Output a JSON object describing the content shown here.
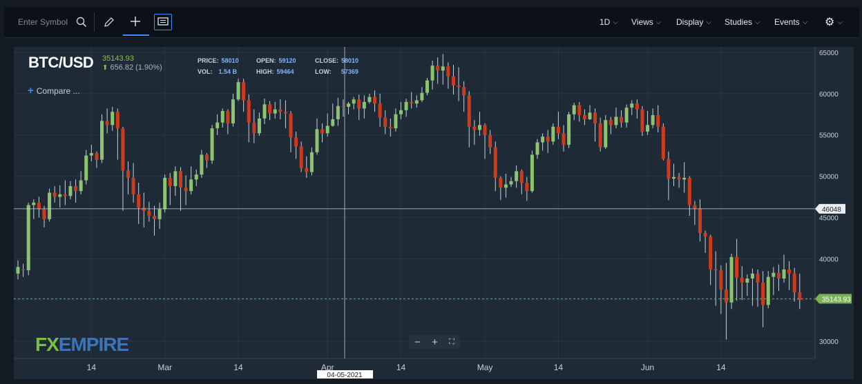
{
  "toolbar": {
    "symbol_placeholder": "Enter Symbol",
    "interval": "1D",
    "views": "Views",
    "display": "Display",
    "studies": "Studies",
    "events": "Events"
  },
  "header": {
    "symbol": "BTC/USD",
    "last": "35143.93",
    "change": "656.82 (1.90%)",
    "compare": "Compare ..."
  },
  "stats": {
    "price_label": "PRICE:",
    "price": "58010",
    "open_label": "OPEN:",
    "open": "59120",
    "close_label": "CLOSE:",
    "close": "58010",
    "vol_label": "VOL:",
    "vol": "1.54 B",
    "high_label": "HIGH:",
    "high": "59464",
    "low_label": "LOW:",
    "low": "57369"
  },
  "crosshair": {
    "date_label": "04-05-2021",
    "price_label": "46048",
    "price": 46048
  },
  "last_price_tag": "35143.93",
  "logo": {
    "fx": "FX",
    "empire": "EMPIRE"
  },
  "colors": {
    "up": "#8cc36e",
    "down": "#cf3a1d",
    "background": "#1e2a36",
    "grid": "#2a3846",
    "last_tag": "#7ab255"
  },
  "chart_data": {
    "type": "candlestick",
    "symbol": "BTC/USD",
    "ylim": [
      28000,
      65000
    ],
    "y_ticks": [
      30000,
      35000,
      40000,
      45000,
      50000,
      55000,
      60000,
      65000
    ],
    "x_ticks": [
      {
        "day": 14,
        "label": "14"
      },
      {
        "day": 28,
        "label": "Mar"
      },
      {
        "day": 42,
        "label": "14"
      },
      {
        "day": 59,
        "label": "Apr"
      },
      {
        "day": 73,
        "label": "14"
      },
      {
        "day": 89,
        "label": "May"
      },
      {
        "day": 103,
        "label": "14"
      },
      {
        "day": 120,
        "label": "Jun"
      },
      {
        "day": 134,
        "label": "14"
      }
    ],
    "first_day": 0,
    "last_day": 151,
    "candles": [
      [
        38200,
        39000,
        37500,
        39800
      ],
      [
        38700,
        38600,
        37800,
        39400
      ],
      [
        38600,
        46500,
        38000,
        46800
      ],
      [
        46500,
        46800,
        44800,
        47200
      ],
      [
        46800,
        46000,
        45000,
        47500
      ],
      [
        46000,
        44800,
        43800,
        46400
      ],
      [
        44800,
        48000,
        44500,
        48500
      ],
      [
        48000,
        47500,
        46800,
        48800
      ],
      [
        47500,
        47800,
        46200,
        48900
      ],
      [
        47800,
        47600,
        46500,
        49500
      ],
      [
        47600,
        48800,
        47200,
        49400
      ],
      [
        48800,
        48200,
        46800,
        49600
      ],
      [
        48200,
        49500,
        47800,
        50600
      ],
      [
        49500,
        52500,
        49000,
        53200
      ],
      [
        52500,
        52800,
        51800,
        53800
      ],
      [
        52800,
        52000,
        51000,
        53000
      ],
      [
        52000,
        56700,
        51600,
        57500
      ],
      [
        56700,
        56200,
        55200,
        58200
      ],
      [
        56200,
        57800,
        55500,
        58400
      ],
      [
        57800,
        55800,
        52000,
        58200
      ],
      [
        55800,
        50700,
        45800,
        56000
      ],
      [
        50700,
        49800,
        47800,
        51800
      ],
      [
        49800,
        47800,
        46800,
        51600
      ],
      [
        47800,
        46200,
        44200,
        49200
      ],
      [
        46200,
        45800,
        43800,
        48000
      ],
      [
        45800,
        45200,
        44500,
        46900
      ],
      [
        45200,
        44800,
        42800,
        46400
      ],
      [
        44800,
        46000,
        43600,
        46800
      ],
      [
        46000,
        49800,
        45600,
        50200
      ],
      [
        49800,
        48800,
        46500,
        50400
      ],
      [
        48800,
        50600,
        47600,
        51200
      ],
      [
        50600,
        48600,
        45800,
        51100
      ],
      [
        48600,
        48200,
        46500,
        50100
      ],
      [
        48200,
        49600,
        47800,
        51200
      ],
      [
        49600,
        50200,
        48800,
        50800
      ],
      [
        50200,
        52600,
        49800,
        53200
      ],
      [
        52600,
        51900,
        51000,
        52800
      ],
      [
        51900,
        55800,
        51500,
        56200
      ],
      [
        55800,
        56500,
        55000,
        57500
      ],
      [
        56500,
        57900,
        55900,
        58200
      ],
      [
        57900,
        56400,
        55100,
        58100
      ],
      [
        56400,
        59300,
        56000,
        60000
      ],
      [
        59300,
        61400,
        59100,
        61800
      ],
      [
        61400,
        59200,
        57800,
        61800
      ],
      [
        59200,
        56500,
        54100,
        59900
      ],
      [
        56500,
        55200,
        54000,
        58100
      ],
      [
        55200,
        57000,
        54900,
        57700
      ],
      [
        57000,
        58700,
        56300,
        59400
      ],
      [
        58700,
        57600,
        56800,
        59100
      ],
      [
        57600,
        58100,
        57000,
        59000
      ],
      [
        58100,
        57800,
        56900,
        59300
      ],
      [
        57800,
        57600,
        55800,
        59200
      ],
      [
        57600,
        54700,
        52900,
        57900
      ],
      [
        54700,
        53600,
        52100,
        55400
      ],
      [
        53600,
        51000,
        50500,
        54200
      ],
      [
        51000,
        50500,
        49800,
        52400
      ],
      [
        50500,
        52900,
        50100,
        53500
      ],
      [
        52900,
        55700,
        52600,
        57000
      ],
      [
        55700,
        55200,
        54100,
        56400
      ],
      [
        55200,
        56100,
        54800,
        57600
      ],
      [
        56100,
        56900,
        56000,
        58800
      ],
      [
        56900,
        58500,
        56100,
        59500
      ],
      [
        58500,
        58400,
        57200,
        59300
      ],
      [
        58400,
        58800,
        57500,
        59000
      ],
      [
        58800,
        59300,
        58100,
        59600
      ],
      [
        59300,
        58200,
        56800,
        59900
      ],
      [
        58200,
        59000,
        57000,
        59800
      ],
      [
        59000,
        59600,
        58800,
        60000
      ],
      [
        59600,
        58800,
        57800,
        60400
      ],
      [
        58800,
        57100,
        56000,
        60000
      ],
      [
        57100,
        56000,
        55100,
        58000
      ],
      [
        56000,
        55800,
        54800,
        57000
      ],
      [
        55800,
        57500,
        55400,
        58200
      ],
      [
        57500,
        58000,
        56900,
        59000
      ],
      [
        58000,
        59000,
        57200,
        59400
      ],
      [
        59000,
        58800,
        58200,
        60200
      ],
      [
        58800,
        59200,
        58300,
        59800
      ],
      [
        59200,
        60100,
        59000,
        60800
      ],
      [
        60100,
        61600,
        59800,
        61900
      ],
      [
        61600,
        63400,
        60500,
        64000
      ],
      [
        63400,
        62800,
        61200,
        64400
      ],
      [
        62800,
        63300,
        61100,
        64800
      ],
      [
        63300,
        62100,
        60600,
        63800
      ],
      [
        62100,
        61000,
        59900,
        63500
      ],
      [
        61000,
        60800,
        59100,
        63200
      ],
      [
        60800,
        59800,
        57800,
        61500
      ],
      [
        59800,
        56000,
        53500,
        60300
      ],
      [
        56000,
        55600,
        53800,
        56800
      ],
      [
        55600,
        56200,
        54900,
        57800
      ],
      [
        56200,
        55000,
        52100,
        56400
      ],
      [
        55000,
        53500,
        52700,
        55600
      ],
      [
        53500,
        49800,
        48200,
        54200
      ],
      [
        49800,
        48600,
        47100,
        50000
      ],
      [
        48600,
        49000,
        47400,
        50300
      ],
      [
        49000,
        49400,
        48700,
        49900
      ],
      [
        49400,
        50600,
        48600,
        51300
      ],
      [
        50600,
        49200,
        47800,
        50800
      ],
      [
        49200,
        48200,
        47000,
        49900
      ],
      [
        48200,
        52600,
        48000,
        53100
      ],
      [
        52600,
        54100,
        52100,
        54500
      ],
      [
        54100,
        54800,
        53100,
        55200
      ],
      [
        54800,
        54200,
        52800,
        55600
      ],
      [
        54200,
        56000,
        53800,
        56400
      ],
      [
        56000,
        55200,
        54500,
        57800
      ],
      [
        55200,
        53800,
        53000,
        56200
      ],
      [
        53800,
        57500,
        53400,
        57800
      ],
      [
        57500,
        58600,
        56800,
        58900
      ],
      [
        58600,
        57400,
        56600,
        59000
      ],
      [
        57400,
        56900,
        56200,
        58100
      ],
      [
        56900,
        57700,
        56800,
        58600
      ],
      [
        57700,
        56400,
        54200,
        58200
      ],
      [
        56400,
        53500,
        53000,
        57100
      ],
      [
        53500,
        56800,
        53300,
        57400
      ],
      [
        56800,
        56200,
        55100,
        57200
      ],
      [
        56200,
        57200,
        55800,
        58300
      ],
      [
        57200,
        56500,
        55900,
        58000
      ],
      [
        56500,
        58300,
        55900,
        58700
      ],
      [
        58300,
        58800,
        57400,
        59200
      ],
      [
        58800,
        58100,
        57000,
        59300
      ],
      [
        58100,
        55400,
        54900,
        58500
      ],
      [
        55400,
        56200,
        55000,
        57900
      ],
      [
        56200,
        57400,
        55800,
        58200
      ],
      [
        57400,
        56000,
        55300,
        58600
      ],
      [
        56000,
        52100,
        51900,
        56400
      ],
      [
        52100,
        49700,
        47100,
        53000
      ],
      [
        49700,
        49900,
        48800,
        51500
      ],
      [
        49900,
        49600,
        48600,
        50400
      ],
      [
        49600,
        49800,
        48000,
        51700
      ],
      [
        49800,
        46500,
        45200,
        50000
      ],
      [
        46500,
        46100,
        44100,
        47000
      ],
      [
        46100,
        43100,
        42100,
        47200
      ],
      [
        43100,
        42700,
        40700,
        43400
      ],
      [
        42700,
        38700,
        36800,
        42900
      ],
      [
        38700,
        38600,
        34300,
        40900
      ],
      [
        38600,
        36300,
        33300,
        39200
      ],
      [
        36300,
        34700,
        30200,
        39500
      ],
      [
        34700,
        40200,
        33900,
        40600
      ],
      [
        40200,
        37700,
        34900,
        42400
      ],
      [
        37700,
        37100,
        35000,
        39100
      ],
      [
        37100,
        37600,
        35500,
        38100
      ],
      [
        37600,
        38200,
        34300,
        38800
      ],
      [
        38200,
        37100,
        34200,
        38700
      ],
      [
        37100,
        34400,
        31700,
        38500
      ],
      [
        34400,
        37800,
        34000,
        38500
      ],
      [
        37800,
        38300,
        35600,
        39000
      ],
      [
        38300,
        37600,
        36100,
        39300
      ],
      [
        37600,
        38700,
        37100,
        40500
      ],
      [
        38700,
        38200,
        36200,
        39700
      ],
      [
        38200,
        35900,
        34800,
        38900
      ],
      [
        35900,
        35000,
        33900,
        38200
      ]
    ]
  }
}
